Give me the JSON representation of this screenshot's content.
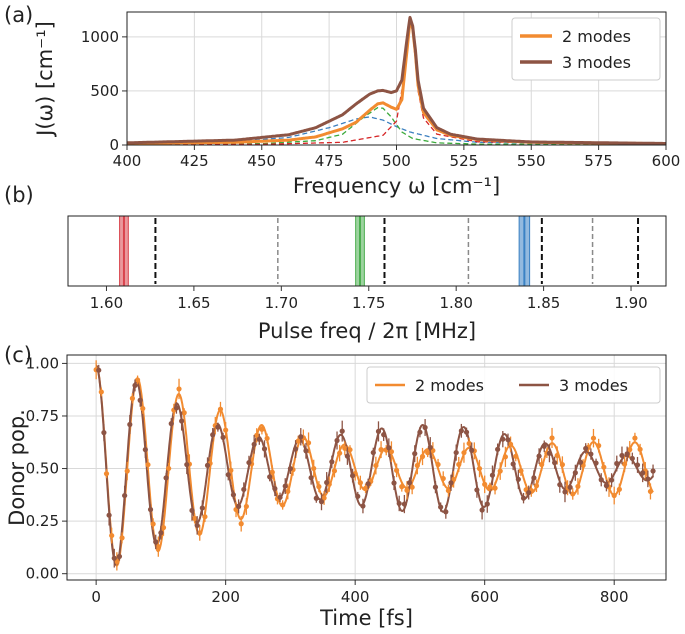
{
  "chart_data": [
    {
      "panel": "(a)",
      "type": "line",
      "xlabel": "Frequency ω [cm⁻¹]",
      "ylabel": "J(ω) [cm⁻¹]",
      "xlim": [
        400,
        600
      ],
      "ylim": [
        0,
        1230
      ],
      "xticks": [
        "400",
        "425",
        "450",
        "475",
        "500",
        "525",
        "550",
        "575",
        "600"
      ],
      "yticks": [
        "0",
        "500",
        "1000"
      ],
      "xtick_values": [
        400,
        425,
        450,
        475,
        500,
        525,
        550,
        575,
        600
      ],
      "ytick_values": [
        0,
        500,
        1000
      ],
      "legend": [
        "2 modes",
        "3 modes"
      ],
      "legend_position": "top-right",
      "grid": true,
      "series": [
        {
          "name": "2 modes",
          "color": "#f28b30",
          "style": "solid",
          "x": [
            400,
            440,
            460,
            470,
            480,
            485,
            490,
            493,
            495,
            498,
            500,
            502,
            504,
            505,
            506,
            507,
            508,
            510,
            515,
            520,
            530,
            550,
            600
          ],
          "y": [
            15,
            25,
            45,
            75,
            150,
            210,
            320,
            380,
            390,
            350,
            330,
            420,
            900,
            1150,
            1080,
            850,
            550,
            300,
            140,
            90,
            50,
            25,
            12
          ]
        },
        {
          "name": "3 modes",
          "color": "#8d5444",
          "style": "solid",
          "x": [
            400,
            440,
            460,
            470,
            480,
            485,
            490,
            493,
            495,
            498,
            500,
            502,
            504,
            505,
            506,
            507,
            508,
            510,
            515,
            520,
            530,
            550,
            600
          ],
          "y": [
            20,
            45,
            95,
            160,
            280,
            380,
            470,
            500,
            505,
            485,
            500,
            600,
            1000,
            1180,
            1100,
            880,
            600,
            340,
            160,
            100,
            55,
            28,
            14
          ]
        },
        {
          "name": "mode 1",
          "color": "#3b7fbf",
          "style": "dashed",
          "x": [
            400,
            440,
            460,
            475,
            485,
            490,
            495,
            500,
            505,
            515,
            530,
            600
          ],
          "y": [
            8,
            30,
            70,
            160,
            240,
            260,
            230,
            170,
            120,
            60,
            25,
            6
          ]
        },
        {
          "name": "mode 2",
          "color": "#3caa3c",
          "style": "dashed",
          "x": [
            400,
            450,
            470,
            480,
            488,
            493,
            495,
            498,
            502,
            506,
            515,
            530,
            600
          ],
          "y": [
            4,
            12,
            40,
            100,
            260,
            345,
            340,
            260,
            120,
            60,
            20,
            8,
            2
          ]
        },
        {
          "name": "mode 3",
          "color": "#d62728",
          "style": "dashed",
          "x": [
            400,
            450,
            480,
            495,
            500,
            503,
            505,
            506,
            508,
            510,
            515,
            530,
            600
          ],
          "y": [
            2,
            6,
            25,
            90,
            220,
            650,
            1150,
            1050,
            500,
            250,
            100,
            30,
            5
          ]
        }
      ]
    },
    {
      "panel": "(b)",
      "type": "scatter",
      "xlabel": "Pulse freq / 2π [MHz]",
      "xlim": [
        1.578,
        1.92
      ],
      "xticks": [
        "1.60",
        "1.65",
        "1.70",
        "1.75",
        "1.80",
        "1.85",
        "1.90"
      ],
      "xtick_values": [
        1.6,
        1.65,
        1.7,
        1.75,
        1.8,
        1.85,
        1.9
      ],
      "bands": [
        {
          "center": 1.61,
          "width": 0.005,
          "color": "#d9434d"
        },
        {
          "center": 1.745,
          "width": 0.005,
          "color": "#4caf50"
        },
        {
          "center": 1.839,
          "width": 0.006,
          "color": "#3b82c4"
        }
      ],
      "black_dashed_lines": [
        1.628,
        1.759,
        1.849,
        1.904
      ],
      "gray_dashed_lines": [
        1.698,
        1.807,
        1.878
      ]
    },
    {
      "panel": "(c)",
      "type": "line",
      "xlabel": "Time [fs]",
      "ylabel": "Donor pop.",
      "xlim": [
        -45,
        880
      ],
      "ylim": [
        -0.03,
        1.04
      ],
      "xticks": [
        "0",
        "200",
        "400",
        "600",
        "800"
      ],
      "yticks": [
        "0.00",
        "0.25",
        "0.50",
        "0.75",
        "1.00"
      ],
      "xtick_values": [
        0,
        200,
        400,
        600,
        800
      ],
      "ytick_values": [
        0,
        0.25,
        0.5,
        0.75,
        1.0
      ],
      "legend": [
        "2 modes",
        "3 modes"
      ],
      "legend_position": "top-right",
      "grid": true,
      "series": [
        {
          "name": "2 modes",
          "color": "#f28b30",
          "params": {
            "A": 0.43,
            "damp": 0.0016,
            "T": 64,
            "beat": 0.6,
            "beatT": 900,
            "phase": 0
          }
        },
        {
          "name": "3 modes",
          "color": "#8d5444",
          "params": {
            "A": 0.45,
            "damp": 0.0016,
            "T": 63,
            "beat": 0.55,
            "beatT": 560,
            "phase": 0.1
          }
        }
      ],
      "t_max": 860,
      "marker_step_fs": 8
    }
  ],
  "panel_labels": [
    "(a)",
    "(b)",
    "(c)"
  ]
}
